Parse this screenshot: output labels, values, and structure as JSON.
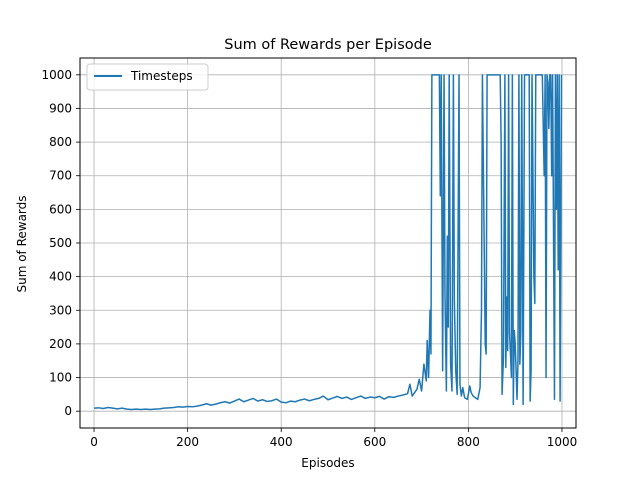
{
  "chart_data": {
    "type": "line",
    "title": "Sum of Rewards per Episode",
    "xlabel": "Episodes",
    "ylabel": "Sum of Rewards",
    "xlim": [
      -30,
      1030
    ],
    "ylim": [
      -50,
      1050
    ],
    "grid": true,
    "legend_position": "top-left",
    "xticks": [
      0,
      200,
      400,
      600,
      800,
      1000
    ],
    "yticks": [
      0,
      100,
      200,
      300,
      400,
      500,
      600,
      700,
      800,
      900,
      1000
    ],
    "series": [
      {
        "name": "Timesteps",
        "color": "#1f77b4",
        "points": [
          [
            0,
            9
          ],
          [
            10,
            10
          ],
          [
            20,
            8
          ],
          [
            30,
            11
          ],
          [
            40,
            9
          ],
          [
            50,
            7
          ],
          [
            60,
            9
          ],
          [
            70,
            6
          ],
          [
            80,
            5
          ],
          [
            90,
            6
          ],
          [
            100,
            5
          ],
          [
            110,
            6
          ],
          [
            120,
            5
          ],
          [
            130,
            6
          ],
          [
            140,
            7
          ],
          [
            150,
            9
          ],
          [
            160,
            10
          ],
          [
            170,
            11
          ],
          [
            180,
            13
          ],
          [
            190,
            12
          ],
          [
            200,
            14
          ],
          [
            210,
            13
          ],
          [
            220,
            15
          ],
          [
            230,
            18
          ],
          [
            240,
            22
          ],
          [
            250,
            18
          ],
          [
            260,
            21
          ],
          [
            270,
            25
          ],
          [
            280,
            28
          ],
          [
            290,
            24
          ],
          [
            300,
            30
          ],
          [
            310,
            36
          ],
          [
            320,
            28
          ],
          [
            330,
            33
          ],
          [
            340,
            38
          ],
          [
            350,
            30
          ],
          [
            360,
            34
          ],
          [
            370,
            29
          ],
          [
            380,
            31
          ],
          [
            390,
            36
          ],
          [
            400,
            27
          ],
          [
            410,
            25
          ],
          [
            420,
            30
          ],
          [
            430,
            28
          ],
          [
            440,
            33
          ],
          [
            450,
            36
          ],
          [
            460,
            31
          ],
          [
            470,
            35
          ],
          [
            480,
            38
          ],
          [
            490,
            45
          ],
          [
            500,
            34
          ],
          [
            510,
            39
          ],
          [
            520,
            44
          ],
          [
            530,
            38
          ],
          [
            540,
            42
          ],
          [
            550,
            35
          ],
          [
            560,
            40
          ],
          [
            570,
            45
          ],
          [
            580,
            38
          ],
          [
            590,
            42
          ],
          [
            600,
            40
          ],
          [
            610,
            44
          ],
          [
            620,
            36
          ],
          [
            630,
            43
          ],
          [
            640,
            41
          ],
          [
            650,
            45
          ],
          [
            660,
            48
          ],
          [
            670,
            52
          ],
          [
            675,
            80
          ],
          [
            680,
            45
          ],
          [
            690,
            65
          ],
          [
            695,
            95
          ],
          [
            700,
            60
          ],
          [
            705,
            140
          ],
          [
            710,
            90
          ],
          [
            712,
            210
          ],
          [
            715,
            100
          ],
          [
            718,
            300
          ],
          [
            720,
            170
          ],
          [
            722,
            1000
          ],
          [
            730,
            1000
          ],
          [
            738,
            1000
          ],
          [
            740,
            640
          ],
          [
            742,
            1000
          ],
          [
            745,
            120
          ],
          [
            748,
            1000
          ],
          [
            750,
            350
          ],
          [
            753,
            60
          ],
          [
            755,
            520
          ],
          [
            757,
            250
          ],
          [
            759,
            1000
          ],
          [
            762,
            140
          ],
          [
            765,
            60
          ],
          [
            768,
            1000
          ],
          [
            770,
            330
          ],
          [
            773,
            120
          ],
          [
            776,
            50
          ],
          [
            780,
            1000
          ],
          [
            782,
            80
          ],
          [
            785,
            45
          ],
          [
            788,
            70
          ],
          [
            792,
            40
          ],
          [
            798,
            35
          ],
          [
            803,
            75
          ],
          [
            806,
            55
          ],
          [
            810,
            45
          ],
          [
            815,
            40
          ],
          [
            820,
            35
          ],
          [
            825,
            70
          ],
          [
            828,
            300
          ],
          [
            830,
            1000
          ],
          [
            836,
            200
          ],
          [
            838,
            170
          ],
          [
            840,
            1000
          ],
          [
            848,
            1000
          ],
          [
            855,
            1000
          ],
          [
            862,
            1000
          ],
          [
            868,
            1000
          ],
          [
            870,
            800
          ],
          [
            872,
            50
          ],
          [
            875,
            160
          ],
          [
            878,
            1000
          ],
          [
            880,
            130
          ],
          [
            882,
            340
          ],
          [
            884,
            180
          ],
          [
            886,
            1000
          ],
          [
            888,
            230
          ],
          [
            890,
            170
          ],
          [
            892,
            100
          ],
          [
            894,
            1000
          ],
          [
            896,
            20
          ],
          [
            898,
            240
          ],
          [
            900,
            200
          ],
          [
            902,
            120
          ],
          [
            904,
            35
          ],
          [
            906,
            150
          ],
          [
            908,
            1000
          ],
          [
            910,
            140
          ],
          [
            912,
            230
          ],
          [
            914,
            1000
          ],
          [
            917,
            20
          ],
          [
            920,
            1000
          ],
          [
            925,
            1000
          ],
          [
            930,
            1000
          ],
          [
            932,
            30
          ],
          [
            934,
            120
          ],
          [
            936,
            1000
          ],
          [
            940,
            400
          ],
          [
            942,
            320
          ],
          [
            944,
            1000
          ],
          [
            950,
            1000
          ],
          [
            958,
            1000
          ],
          [
            962,
            700
          ],
          [
            964,
            1000
          ],
          [
            966,
            100
          ],
          [
            968,
            1000
          ],
          [
            970,
            980
          ],
          [
            972,
            840
          ],
          [
            974,
            1000
          ],
          [
            976,
            1000
          ],
          [
            978,
            700
          ],
          [
            980,
            1000
          ],
          [
            984,
            35
          ],
          [
            986,
            1000
          ],
          [
            988,
            600
          ],
          [
            990,
            1000
          ],
          [
            992,
            420
          ],
          [
            994,
            1000
          ],
          [
            996,
            30
          ],
          [
            999,
            1000
          ]
        ]
      }
    ]
  }
}
